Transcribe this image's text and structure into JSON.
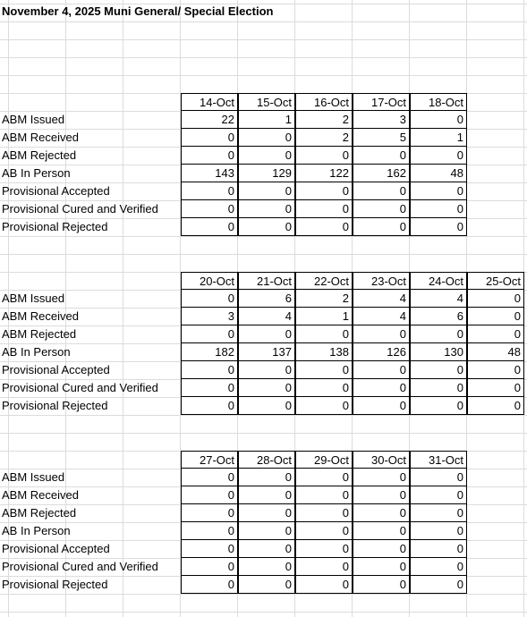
{
  "title": "November 4, 2025 Muni General/ Special Election",
  "row_labels": [
    "ABM Issued",
    "ABM Received",
    "ABM Rejected",
    "AB In Person",
    "Provisional Accepted",
    "Provisional Cured and Verified",
    "Provisional Rejected"
  ],
  "blocks": [
    {
      "dates": [
        "14-Oct",
        "15-Oct",
        "16-Oct",
        "17-Oct",
        "18-Oct"
      ],
      "values": [
        [
          "22",
          "1",
          "2",
          "3",
          "0"
        ],
        [
          "0",
          "0",
          "2",
          "5",
          "1"
        ],
        [
          "0",
          "0",
          "0",
          "0",
          "0"
        ],
        [
          "143",
          "129",
          "122",
          "162",
          "48"
        ],
        [
          "0",
          "0",
          "0",
          "0",
          "0"
        ],
        [
          "0",
          "0",
          "0",
          "0",
          "0"
        ],
        [
          "0",
          "0",
          "0",
          "0",
          "0"
        ]
      ]
    },
    {
      "dates": [
        "20-Oct",
        "21-Oct",
        "22-Oct",
        "23-Oct",
        "24-Oct",
        "25-Oct"
      ],
      "values": [
        [
          "0",
          "6",
          "2",
          "4",
          "4",
          "0"
        ],
        [
          "3",
          "4",
          "1",
          "4",
          "6",
          "0"
        ],
        [
          "0",
          "0",
          "0",
          "0",
          "0",
          "0"
        ],
        [
          "182",
          "137",
          "138",
          "126",
          "130",
          "48"
        ],
        [
          "0",
          "0",
          "0",
          "0",
          "0",
          "0"
        ],
        [
          "0",
          "0",
          "0",
          "0",
          "0",
          "0"
        ],
        [
          "0",
          "0",
          "0",
          "0",
          "0",
          "0"
        ]
      ]
    },
    {
      "dates": [
        "27-Oct",
        "28-Oct",
        "29-Oct",
        "30-Oct",
        "31-Oct"
      ],
      "values": [
        [
          "0",
          "0",
          "0",
          "0",
          "0"
        ],
        [
          "0",
          "0",
          "0",
          "0",
          "0"
        ],
        [
          "0",
          "0",
          "0",
          "0",
          "0"
        ],
        [
          "0",
          "0",
          "0",
          "0",
          "0"
        ],
        [
          "0",
          "0",
          "0",
          "0",
          "0"
        ],
        [
          "0",
          "0",
          "0",
          "0",
          "0"
        ],
        [
          "0",
          "0",
          "0",
          "0",
          "0"
        ]
      ]
    }
  ]
}
